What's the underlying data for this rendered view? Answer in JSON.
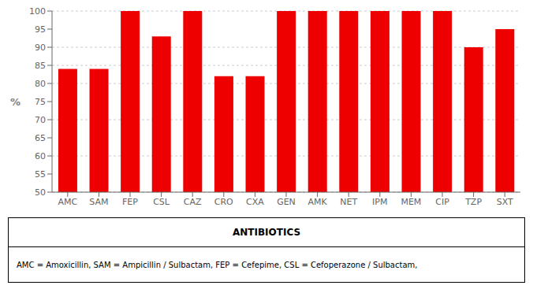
{
  "chart_data": {
    "type": "bar",
    "categories": [
      "AMC",
      "SAM",
      "FEP",
      "CSL",
      "CAZ",
      "CRO",
      "CXA",
      "GEN",
      "AMK",
      "NET",
      "IPM",
      "MEM",
      "CIP",
      "TZP",
      "SXT"
    ],
    "values": [
      84,
      84,
      100,
      93,
      100,
      82,
      82,
      100,
      100,
      100,
      100,
      100,
      100,
      90,
      95
    ],
    "color": "#EE0000",
    "ylim": [
      50,
      100
    ],
    "yticks": [
      50,
      55,
      60,
      65,
      70,
      75,
      80,
      85,
      90,
      95,
      100
    ],
    "ylabel": "%",
    "xlabel": "ANTIBIOTICS",
    "annotations": [
      "AMC = Amoxicillin, SAM = Ampicillin / Sulbactam, FEP = Cefepime, CSL = Cefoperazone / Sulbactam,"
    ],
    "grid": true
  }
}
